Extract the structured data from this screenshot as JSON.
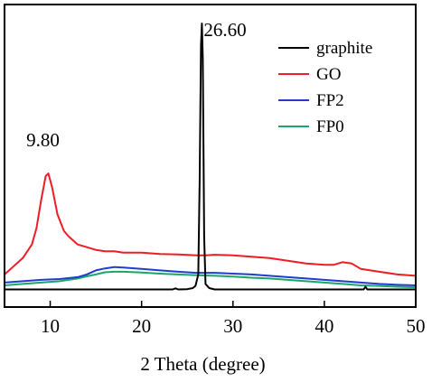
{
  "chart_data": {
    "type": "line",
    "title": "",
    "xlabel": "2 Theta (degree)",
    "ylabel": "",
    "xlim": [
      5,
      50
    ],
    "ylim": [
      0,
      100
    ],
    "x_ticks": [
      10,
      20,
      30,
      40,
      50
    ],
    "x_tick_labels": [
      "10",
      "20",
      "30",
      "40",
      "50"
    ],
    "y_ticks_labeled": false,
    "grid": false,
    "legend_position": "top-right",
    "annotations": [
      {
        "text": "9.80",
        "x": 9.8,
        "y": 53
      },
      {
        "text": "26.60",
        "x": 26.6,
        "y": 98
      }
    ],
    "series": [
      {
        "name": "graphite",
        "color": "#000000",
        "points": [
          [
            5,
            0.5
          ],
          [
            10,
            0.5
          ],
          [
            15,
            0.5
          ],
          [
            20,
            0.5
          ],
          [
            23.4,
            0.5
          ],
          [
            23.7,
            0.9
          ],
          [
            24,
            0.5
          ],
          [
            25,
            0.6
          ],
          [
            25.6,
            1
          ],
          [
            25.9,
            1.8
          ],
          [
            26.2,
            6
          ],
          [
            26.35,
            40
          ],
          [
            26.5,
            90
          ],
          [
            26.6,
            98
          ],
          [
            26.7,
            85
          ],
          [
            26.85,
            20
          ],
          [
            27,
            2.5
          ],
          [
            27.4,
            1
          ],
          [
            28,
            0.5
          ],
          [
            30,
            0.5
          ],
          [
            35,
            0.5
          ],
          [
            40,
            0.5
          ],
          [
            44.3,
            0.5
          ],
          [
            44.5,
            1.5
          ],
          [
            44.7,
            0.5
          ],
          [
            50,
            0.5
          ]
        ]
      },
      {
        "name": "GO",
        "color": "#ee1c25",
        "points": [
          [
            5,
            6
          ],
          [
            5.5,
            7.5
          ],
          [
            6,
            9
          ],
          [
            7,
            12
          ],
          [
            8,
            17
          ],
          [
            8.5,
            23
          ],
          [
            9,
            33
          ],
          [
            9.5,
            42
          ],
          [
            9.8,
            43
          ],
          [
            10.2,
            38
          ],
          [
            10.8,
            28
          ],
          [
            11.5,
            22
          ],
          [
            12,
            20
          ],
          [
            13,
            17
          ],
          [
            14,
            16
          ],
          [
            15,
            15
          ],
          [
            16,
            14.5
          ],
          [
            17,
            14.5
          ],
          [
            18,
            14
          ],
          [
            20,
            14
          ],
          [
            22,
            13.5
          ],
          [
            24,
            13.3
          ],
          [
            26,
            13
          ],
          [
            27,
            13
          ],
          [
            28,
            13.2
          ],
          [
            30,
            13
          ],
          [
            32,
            12.5
          ],
          [
            34,
            12
          ],
          [
            36,
            11
          ],
          [
            38,
            10
          ],
          [
            40,
            9.5
          ],
          [
            41,
            9.5
          ],
          [
            42,
            10.5
          ],
          [
            43,
            10
          ],
          [
            44,
            8
          ],
          [
            46,
            7
          ],
          [
            48,
            6
          ],
          [
            50,
            5.5
          ]
        ]
      },
      {
        "name": "FP2",
        "color": "#1f3ccf",
        "points": [
          [
            5,
            3
          ],
          [
            7,
            3.5
          ],
          [
            9,
            4
          ],
          [
            11,
            4.3
          ],
          [
            13,
            5
          ],
          [
            14,
            6
          ],
          [
            15,
            7.5
          ],
          [
            16,
            8.2
          ],
          [
            17,
            8.7
          ],
          [
            18,
            8.5
          ],
          [
            20,
            8
          ],
          [
            22,
            7.5
          ],
          [
            24,
            7
          ],
          [
            26,
            6.6
          ],
          [
            28,
            6.6
          ],
          [
            30,
            6.3
          ],
          [
            32,
            6
          ],
          [
            34,
            5.5
          ],
          [
            36,
            5
          ],
          [
            38,
            4.5
          ],
          [
            40,
            4
          ],
          [
            42,
            3.5
          ],
          [
            44,
            3
          ],
          [
            46,
            2.5
          ],
          [
            48,
            2.2
          ],
          [
            50,
            2
          ]
        ]
      },
      {
        "name": "FP0",
        "color": "#1aa56a",
        "points": [
          [
            5,
            2
          ],
          [
            7,
            2.5
          ],
          [
            9,
            3
          ],
          [
            11,
            3.5
          ],
          [
            13,
            4.5
          ],
          [
            14,
            5.3
          ],
          [
            15,
            6
          ],
          [
            16,
            6.8
          ],
          [
            17,
            7
          ],
          [
            18,
            7
          ],
          [
            20,
            6.7
          ],
          [
            22,
            6.3
          ],
          [
            24,
            6
          ],
          [
            26,
            5.7
          ],
          [
            28,
            5.5
          ],
          [
            30,
            5.2
          ],
          [
            32,
            4.8
          ],
          [
            34,
            4.5
          ],
          [
            36,
            4
          ],
          [
            38,
            3.5
          ],
          [
            40,
            3
          ],
          [
            42,
            2.5
          ],
          [
            44,
            2
          ],
          [
            46,
            1.8
          ],
          [
            48,
            1.5
          ],
          [
            50,
            1.3
          ]
        ]
      }
    ]
  }
}
